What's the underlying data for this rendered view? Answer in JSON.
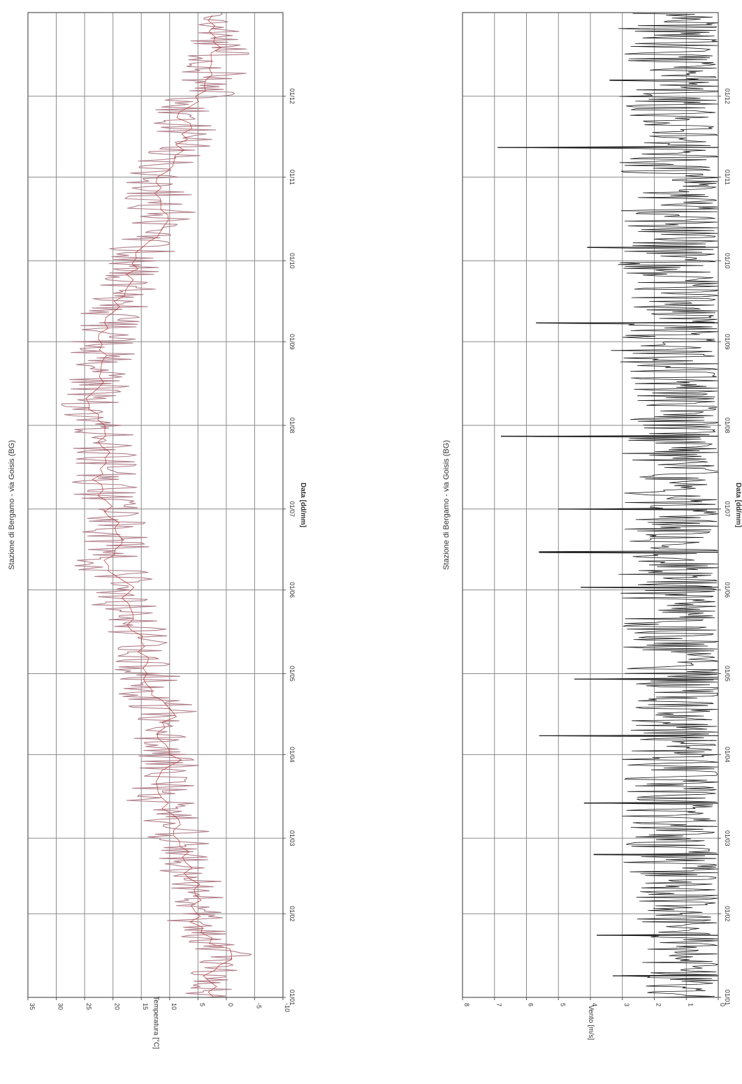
{
  "chart_data": [
    {
      "type": "line",
      "title": "Stazione di Bergamo - via Goisis (BG)",
      "xlabel": "Data [dd/mm]",
      "ylabel": "Temperatura [°C]",
      "ylim": [
        -10,
        35
      ],
      "y_ticks": [
        "-10",
        "-5",
        "0",
        "5",
        "10",
        "15",
        "20",
        "25",
        "30",
        "35"
      ],
      "x_tick_labels": [
        "01/01",
        "01/02",
        "01/03",
        "01/04",
        "01/05",
        "01/06",
        "01/07",
        "01/08",
        "01/09",
        "01/10",
        "01/11",
        "01/12"
      ],
      "grid": true,
      "orientation": "rotated 90° clockwise (time runs top-to-bottom)",
      "series": [
        {
          "name": "",
          "color": "#b07f8a",
          "mean_color": "#b0302a",
          "x_day": [
            0,
            8,
            16,
            24,
            32,
            40,
            48,
            56,
            64,
            72,
            80,
            88,
            96,
            104,
            112,
            120,
            128,
            136,
            144,
            152,
            160,
            168,
            176,
            184,
            192,
            200,
            208,
            216,
            224,
            232,
            240,
            248,
            256,
            264,
            272,
            280,
            288,
            296,
            304,
            312,
            320,
            328,
            336,
            344,
            352,
            360
          ],
          "y_mean": [
            2,
            3,
            -1,
            5,
            6,
            5,
            7,
            8,
            9,
            11,
            12,
            9,
            13,
            10,
            13,
            14,
            15,
            16,
            18,
            17,
            21,
            19,
            20,
            21,
            23,
            21,
            22,
            23,
            24,
            21,
            22,
            22,
            19,
            18,
            16,
            14,
            11,
            12,
            12,
            9,
            7,
            8,
            3,
            2,
            2,
            3
          ],
          "y_band": [
            5,
            5,
            5,
            6,
            5,
            5,
            5,
            5,
            6,
            7,
            6,
            6,
            6,
            6,
            6,
            6,
            6,
            6,
            6,
            6,
            6,
            6,
            6,
            6,
            7,
            6,
            6,
            6,
            6,
            6,
            6,
            6,
            6,
            6,
            6,
            6,
            6,
            6,
            6,
            6,
            6,
            6,
            6,
            6,
            6,
            5
          ]
        }
      ]
    },
    {
      "type": "line",
      "title": "Stazione di Bergamo - via Goisis (BG)",
      "xlabel": "Data [dd/mm]",
      "ylabel": "Vento [m/s]",
      "ylim": [
        0,
        8
      ],
      "y_ticks": [
        "0",
        "1",
        "2",
        "3",
        "4",
        "5",
        "6",
        "7",
        "8"
      ],
      "x_tick_labels": [
        "01/01",
        "01/02",
        "01/03",
        "01/04",
        "01/05",
        "01/06",
        "01/07",
        "01/08",
        "01/09",
        "01/10",
        "01/11",
        "01/12"
      ],
      "grid": true,
      "orientation": "rotated 90° clockwise (time runs top-to-bottom)",
      "series": [
        {
          "name": "",
          "color": "#1a1a1a",
          "x_day": [
            0,
            8,
            16,
            24,
            32,
            40,
            48,
            56,
            64,
            72,
            80,
            88,
            96,
            104,
            112,
            120,
            128,
            136,
            144,
            152,
            160,
            168,
            176,
            184,
            192,
            200,
            208,
            216,
            224,
            232,
            240,
            248,
            256,
            264,
            272,
            280,
            288,
            296,
            304,
            312,
            320,
            328,
            336,
            344,
            352,
            360
          ],
          "y_typical_max": [
            2.5,
            2.3,
            2.6,
            2.4,
            3.0,
            2.8,
            3.2,
            3.0,
            3.4,
            2.9,
            3.1,
            3.3,
            2.8,
            3.0,
            2.9,
            3.2,
            3.1,
            2.9,
            3.4,
            3.0,
            3.2,
            3.3,
            2.8,
            3.0,
            2.9,
            3.1,
            3.0,
            2.8,
            3.2,
            2.9,
            3.4,
            3.0,
            2.8,
            3.1,
            3.3,
            2.9,
            3.2,
            3.0,
            3.4,
            3.1,
            2.9,
            3.3,
            3.2,
            2.8,
            3.0,
            3.2
          ],
          "peaks": [
            {
              "day": 8,
              "value": 3.3
            },
            {
              "day": 23,
              "value": 3.8
            },
            {
              "day": 53,
              "value": 3.9
            },
            {
              "day": 72,
              "value": 4.2
            },
            {
              "day": 97,
              "value": 5.6
            },
            {
              "day": 118,
              "value": 4.5
            },
            {
              "day": 152,
              "value": 4.3
            },
            {
              "day": 165,
              "value": 5.6
            },
            {
              "day": 181,
              "value": 5.0
            },
            {
              "day": 208,
              "value": 6.8
            },
            {
              "day": 250,
              "value": 5.7
            },
            {
              "day": 278,
              "value": 4.1
            },
            {
              "day": 315,
              "value": 6.9
            },
            {
              "day": 340,
              "value": 3.4
            }
          ]
        }
      ]
    }
  ]
}
